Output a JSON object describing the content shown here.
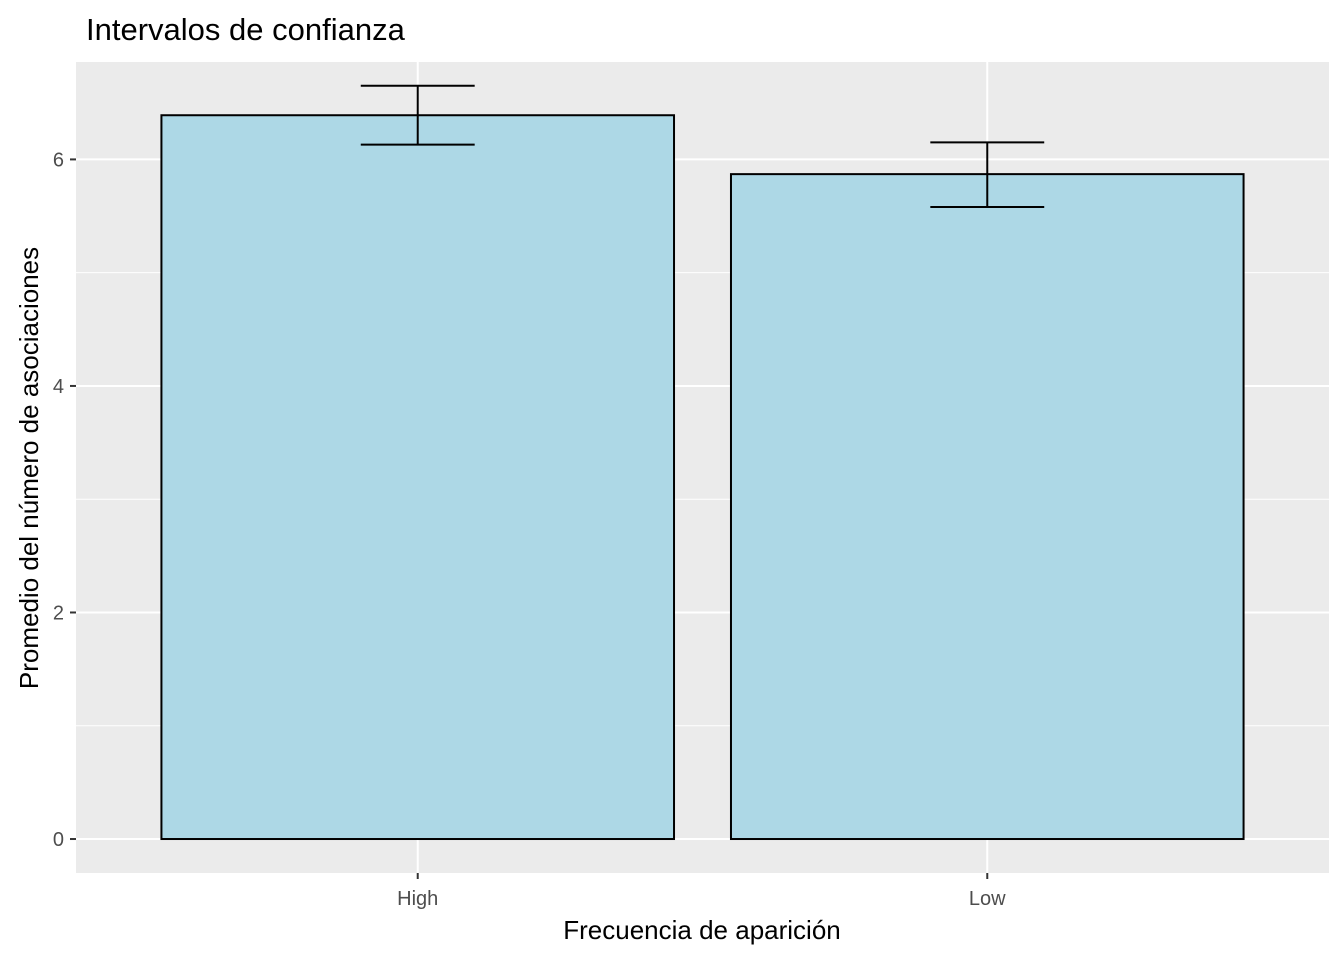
{
  "chart_data": {
    "type": "bar",
    "title": "Intervalos de confianza",
    "xlabel": "Frecuencia de aparición",
    "ylabel": "Promedio del número de asociaciones",
    "categories": [
      "High",
      "Low"
    ],
    "values": [
      6.39,
      5.87
    ],
    "ci_lower": [
      6.13,
      5.58
    ],
    "ci_upper": [
      6.65,
      6.15
    ],
    "ylim": [
      -0.3,
      6.86
    ],
    "yticks": [
      0,
      2,
      4,
      6
    ],
    "grid": true,
    "legend": "none",
    "colors": {
      "panel_bg": "#ebebeb",
      "grid_major": "#ffffff",
      "bar_fill": "#add8e6",
      "bar_stroke": "#000000",
      "errorbar": "#000000",
      "tick_mark": "#333333"
    }
  }
}
